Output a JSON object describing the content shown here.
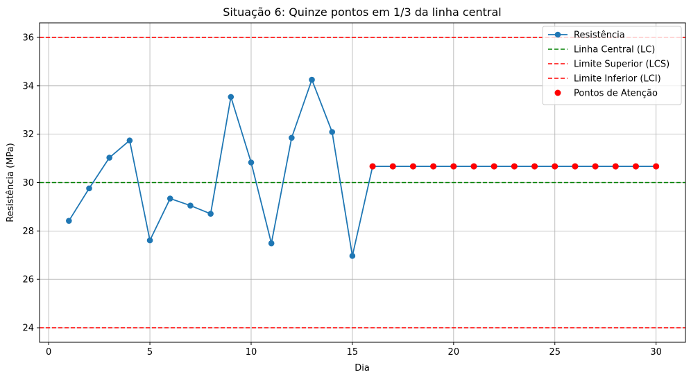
{
  "chart_data": {
    "type": "line",
    "title": "Situação 6: Quinze pontos em 1/3 da linha central",
    "xlabel": "Dia",
    "ylabel": "Resistência (MPa)",
    "xlim": [
      -0.45,
      31.45
    ],
    "ylim": [
      23.4,
      36.6
    ],
    "xticks": [
      0,
      5,
      10,
      15,
      20,
      25,
      30
    ],
    "yticks": [
      24,
      26,
      28,
      30,
      32,
      34,
      36
    ],
    "grid": true,
    "legend_position": "top-right",
    "series": [
      {
        "name": "Resistência",
        "color": "#1f77b4",
        "marker": "circle",
        "x": [
          1,
          2,
          3,
          4,
          5,
          6,
          7,
          8,
          9,
          10,
          11,
          12,
          13,
          14,
          15,
          16,
          17,
          18,
          19,
          20,
          21,
          22,
          23,
          24,
          25,
          26,
          27,
          28,
          29,
          30
        ],
        "y": [
          28.42,
          29.76,
          31.03,
          31.74,
          27.61,
          29.34,
          29.05,
          28.71,
          33.54,
          30.83,
          27.49,
          31.85,
          34.25,
          32.09,
          26.97,
          30.67,
          30.67,
          30.67,
          30.67,
          30.67,
          30.67,
          30.67,
          30.67,
          30.67,
          30.67,
          30.67,
          30.67,
          30.67,
          30.67,
          30.67
        ]
      },
      {
        "name": "Pontos de Atenção",
        "color": "#ff0000",
        "marker": "circle",
        "x": [
          16,
          17,
          18,
          19,
          20,
          21,
          22,
          23,
          24,
          25,
          26,
          27,
          28,
          29,
          30
        ],
        "y": [
          30.67,
          30.67,
          30.67,
          30.67,
          30.67,
          30.67,
          30.67,
          30.67,
          30.67,
          30.67,
          30.67,
          30.67,
          30.67,
          30.67,
          30.67
        ]
      }
    ],
    "hlines": [
      {
        "name": "Linha Central (LC)",
        "y": 30,
        "color": "#008000"
      },
      {
        "name": "Limite Superior (LCS)",
        "y": 36,
        "color": "#ff0000"
      },
      {
        "name": "Limite Inferior (LCI)",
        "y": 24,
        "color": "#ff0000"
      }
    ],
    "legend": [
      {
        "label": "Resistência",
        "kind": "line-marker",
        "color": "#1f77b4"
      },
      {
        "label": "Linha Central (LC)",
        "kind": "dashed",
        "color": "#008000"
      },
      {
        "label": "Limite Superior (LCS)",
        "kind": "dashed",
        "color": "#ff0000"
      },
      {
        "label": "Limite Inferior (LCI)",
        "kind": "dashed",
        "color": "#ff0000"
      },
      {
        "label": "Pontos de Atenção",
        "kind": "marker",
        "color": "#ff0000"
      }
    ]
  }
}
